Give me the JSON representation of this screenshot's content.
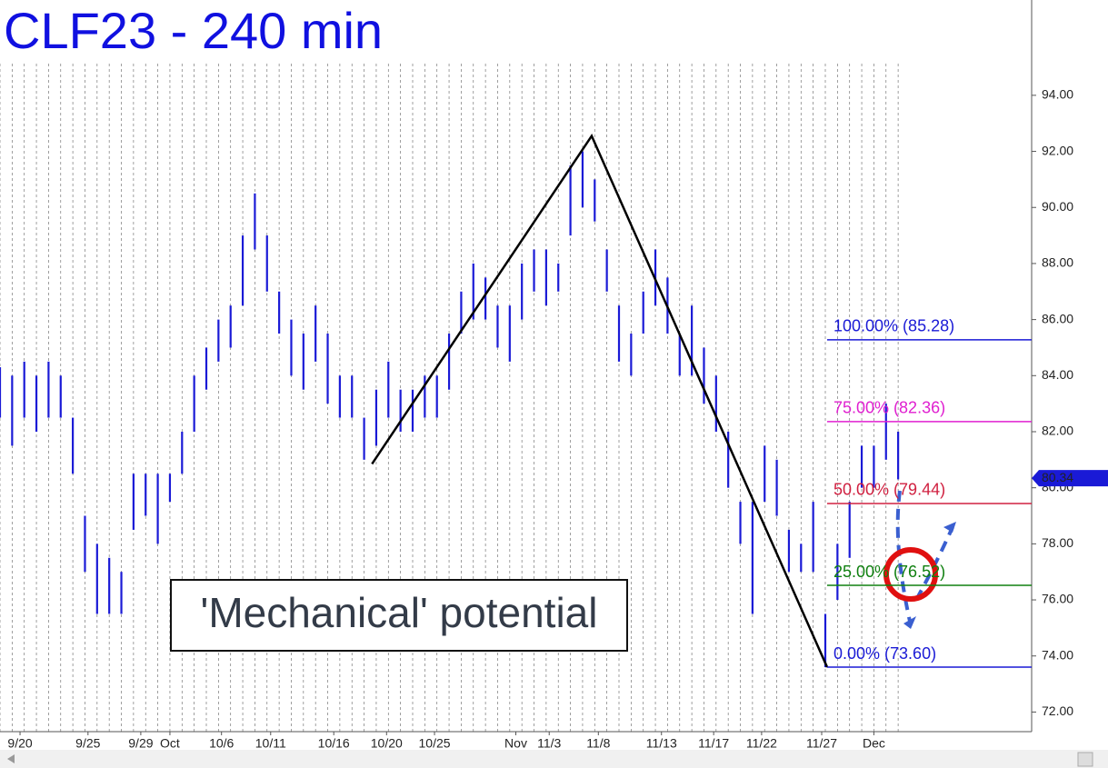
{
  "chart_data": {
    "type": "ohlc",
    "title": "CLF23 - 240 min",
    "annotation": "'Mechanical' potential",
    "color": "#1a1ad6",
    "xlim": [
      0,
      170
    ],
    "ylim": [
      71.3,
      97.4
    ],
    "yticks": [
      {
        "value": 72,
        "label": "72.00"
      },
      {
        "value": 74,
        "label": "74.00"
      },
      {
        "value": 76,
        "label": "76.00"
      },
      {
        "value": 78,
        "label": "78.00"
      },
      {
        "value": 80,
        "label": "80.00"
      },
      {
        "value": 82,
        "label": "82.00"
      },
      {
        "value": 84,
        "label": "84.00"
      },
      {
        "value": 86,
        "label": "86.00"
      },
      {
        "value": 88,
        "label": "88.00"
      },
      {
        "value": 90,
        "label": "90.00"
      },
      {
        "value": 92,
        "label": "92.00"
      },
      {
        "value": 94,
        "label": "94.00"
      }
    ],
    "xticks": [
      {
        "value": 3.3,
        "label": "9/20"
      },
      {
        "value": 14.5,
        "label": "9/25"
      },
      {
        "value": 23.2,
        "label": "9/29"
      },
      {
        "value": 28,
        "label": "Oct"
      },
      {
        "value": 36.5,
        "label": "10/6"
      },
      {
        "value": 44.6,
        "label": "10/11"
      },
      {
        "value": 55,
        "label": "10/16"
      },
      {
        "value": 63.7,
        "label": "10/20"
      },
      {
        "value": 71.6,
        "label": "10/25"
      },
      {
        "value": 85,
        "label": "Nov"
      },
      {
        "value": 90.5,
        "label": "11/3"
      },
      {
        "value": 98.6,
        "label": "11/8"
      },
      {
        "value": 109,
        "label": "11/13"
      },
      {
        "value": 117.6,
        "label": "11/17"
      },
      {
        "value": 125.5,
        "label": "11/22"
      },
      {
        "value": 135.4,
        "label": "11/27"
      },
      {
        "value": 144,
        "label": "Dec"
      }
    ],
    "x": [
      0,
      2,
      4,
      6,
      8,
      10,
      12,
      14,
      16,
      18,
      20,
      22,
      24,
      26,
      28,
      30,
      32,
      34,
      36,
      38,
      40,
      42,
      44,
      46,
      48,
      50,
      52,
      54,
      56,
      58,
      60,
      62,
      64,
      66,
      68,
      70,
      72,
      74,
      76,
      78,
      80,
      82,
      84,
      86,
      88,
      90,
      92,
      94,
      96,
      98,
      100,
      102,
      104,
      106,
      108,
      110,
      112,
      114,
      116,
      118,
      120,
      122,
      124,
      126,
      128,
      130,
      132,
      134,
      136,
      138,
      140,
      142,
      144,
      146,
      148
    ],
    "high": [
      84.3,
      84,
      84.5,
      84,
      84.5,
      84,
      82.5,
      79,
      78,
      77.5,
      77,
      80.5,
      80.5,
      80.5,
      80.5,
      82,
      84,
      85,
      86,
      86.5,
      89,
      90.5,
      89,
      87,
      86,
      85.5,
      86.5,
      85.5,
      84,
      84,
      82.5,
      83.5,
      84.5,
      83.5,
      83.5,
      84,
      84,
      85.5,
      87,
      88,
      87.5,
      86.5,
      86.5,
      88,
      88.5,
      88.5,
      88,
      91.5,
      92,
      91,
      88.5,
      86.5,
      85.5,
      87,
      88.5,
      87.5,
      85.5,
      86.5,
      85,
      84,
      82,
      79.5,
      79.5,
      81.5,
      81,
      78.5,
      78,
      79.5,
      75.5,
      78,
      79.5,
      81.5,
      81.5,
      83,
      82
    ],
    "low": [
      82.5,
      81.5,
      82.5,
      82,
      82.5,
      82.5,
      80.5,
      77,
      75.5,
      75.5,
      75.5,
      78.5,
      79,
      78,
      79.5,
      80.5,
      82,
      83.5,
      84.5,
      85,
      86.5,
      88.5,
      87,
      85.5,
      84,
      83.5,
      84.5,
      83,
      82.5,
      82.5,
      81,
      81.5,
      82.5,
      82,
      82,
      82.5,
      82.5,
      83.5,
      85.5,
      86,
      86,
      85,
      84.5,
      86,
      87,
      86.5,
      87,
      89,
      90,
      89.5,
      87,
      84.5,
      84,
      85.5,
      86.5,
      85.5,
      84,
      84,
      83,
      82,
      80,
      78,
      75.5,
      79.5,
      79,
      77,
      77,
      77,
      73.6,
      76,
      77.5,
      80,
      80,
      81,
      80.3
    ],
    "swing": {
      "x": [
        61.3,
        97.5,
        136.3
      ],
      "values": [
        80.85,
        92.55,
        73.6
      ]
    },
    "levels": [
      {
        "value": 85.28,
        "label": "100.00% (85.28)",
        "color": "#1a1ad6"
      },
      {
        "value": 82.36,
        "label": "75.00% (82.36)",
        "color": "#e020d0"
      },
      {
        "value": 79.44,
        "label": "50.00% (79.44)",
        "color": "#d02040"
      },
      {
        "value": 76.52,
        "label": "25.00% (76.52)",
        "color": "#108010"
      },
      {
        "value": 73.6,
        "label": "0.00% (73.60)",
        "color": "#1a1ad6"
      }
    ],
    "last_price": 80.34
  }
}
